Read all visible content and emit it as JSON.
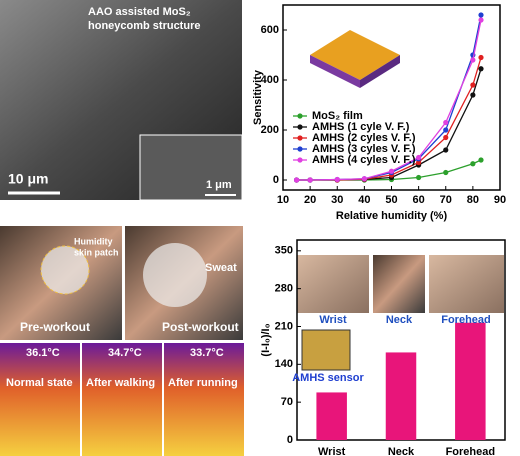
{
  "images": {
    "sem": {
      "caption": [
        "AAO assisted MoS₂",
        "honeycomb structure"
      ],
      "scale_bar": "10 μm",
      "inset_scale_bar": "1 μm"
    },
    "patch": {
      "label": [
        "Humidity",
        "skin patch"
      ],
      "sweat": "Sweat",
      "captions": [
        "Pre-workout",
        "Post-workout"
      ]
    },
    "thermal": {
      "temperatures": [
        "36.1°C",
        "34.7°C",
        "33.7°C"
      ],
      "states": [
        "Normal state",
        "After walking",
        "After running"
      ]
    }
  },
  "chart_data": [
    {
      "type": "line",
      "xlabel": "Relative humidity (%)",
      "ylabel": "Sensitivity",
      "x": [
        15,
        20,
        30,
        40,
        50,
        60,
        70,
        80,
        83
      ],
      "series": [
        {
          "name": "MoS₂ film",
          "color": "#2ca02c",
          "values": [
            0,
            0,
            0,
            0,
            2,
            10,
            30,
            65,
            80
          ]
        },
        {
          "name": "AMHS (1 cyle V. F.)",
          "color": "#111111",
          "values": [
            0,
            0,
            0,
            2,
            10,
            60,
            120,
            340,
            445
          ]
        },
        {
          "name": "AMHS (2 cyles V. F.)",
          "color": "#e02020",
          "values": [
            0,
            0,
            0,
            3,
            20,
            70,
            170,
            380,
            490
          ]
        },
        {
          "name": "AMHS (3 cyles V. F.)",
          "color": "#1f3fd0",
          "values": [
            0,
            0,
            2,
            5,
            30,
            85,
            200,
            500,
            660
          ]
        },
        {
          "name": "AMHS (4 cyles V. F.)",
          "color": "#e040e0",
          "values": [
            0,
            0,
            2,
            5,
            35,
            90,
            230,
            480,
            640
          ]
        }
      ],
      "xlim": [
        10,
        90
      ],
      "xticks": [
        10,
        20,
        30,
        40,
        50,
        60,
        70,
        80,
        90
      ],
      "ylim": [
        -40,
        700
      ],
      "yticks": [
        0,
        200,
        400,
        600
      ],
      "legend": "lower-left"
    },
    {
      "type": "bar",
      "ylabel": "(I-I₀)/I₀",
      "categories": [
        "Wrist",
        "Neck",
        "Forehead"
      ],
      "values": [
        88,
        162,
        217
      ],
      "color": "#e8157a",
      "ylim": [
        0,
        370
      ],
      "yticks": [
        0,
        70,
        140,
        210,
        280,
        350
      ],
      "inset_labels": [
        "Wrist",
        "Neck",
        "Forehead"
      ],
      "inset_callout": "AMHS sensor"
    }
  ]
}
